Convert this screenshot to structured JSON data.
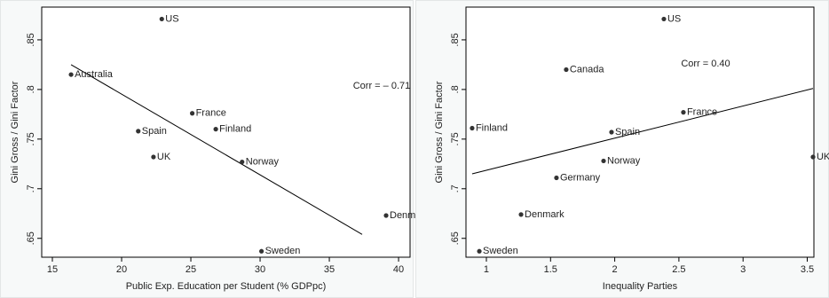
{
  "chart_data": [
    {
      "type": "scatter",
      "x_label": "Public Exp. Education per Student (% GDPpc)",
      "y_label": "Gini Gross / Gini Factor",
      "annotation": "Corr = – 0.71",
      "labels": [
        "Australia",
        "US",
        "France",
        "Finland",
        "Spain",
        "UK",
        "Norway",
        "Denmark",
        "Sweden"
      ],
      "x": [
        16.35,
        22.9,
        25.1,
        26.8,
        21.2,
        22.3,
        28.7,
        39.1,
        30.1
      ],
      "values": [
        0.815,
        0.871,
        0.776,
        0.76,
        0.758,
        0.732,
        0.727,
        0.673,
        0.637
      ],
      "fit": {
        "x": [
          16.35,
          37.37
        ],
        "values": [
          0.825,
          0.654
        ]
      },
      "color": "#333333",
      "xlim": [
        14.23,
        40.83
      ],
      "ylim": [
        0.631,
        0.883
      ],
      "xticks": [
        15,
        20,
        25,
        30,
        35,
        40
      ],
      "yticks": [
        {
          "value": 0.65,
          "label": ".65"
        },
        {
          "value": 0.7,
          "label": ".7"
        },
        {
          "value": 0.75,
          "label": ".75"
        },
        {
          "value": 0.8,
          "label": ".8"
        },
        {
          "value": 0.85,
          "label": ".85"
        }
      ]
    },
    {
      "type": "scatter",
      "x_label": "Inequality Parties",
      "y_label": "Gini Gross / Gini Factor",
      "annotation": "Corr = 0.40",
      "labels": [
        "US",
        "Canada",
        "France",
        "Finland",
        "Spain",
        "UK",
        "Norway",
        "Germany",
        "Denmark",
        "Sweden"
      ],
      "x": [
        2.383,
        1.622,
        2.535,
        0.889,
        1.975,
        3.545,
        1.913,
        1.546,
        1.27,
        0.945
      ],
      "values": [
        0.871,
        0.82,
        0.777,
        0.761,
        0.757,
        0.732,
        0.728,
        0.711,
        0.674,
        0.637
      ],
      "fit": {
        "x": [
          0.889,
          3.545
        ],
        "values": [
          0.715,
          0.801
        ]
      },
      "color": "#333333",
      "xlim": [
        0.841,
        3.552
      ],
      "ylim": [
        0.631,
        0.883
      ],
      "xticks": [
        1,
        1.5,
        2,
        2.5,
        3,
        3.5
      ],
      "yticks": [
        {
          "value": 0.65,
          "label": ".65"
        },
        {
          "value": 0.7,
          "label": ".7"
        },
        {
          "value": 0.75,
          "label": ".75"
        },
        {
          "value": 0.8,
          "label": ".8"
        },
        {
          "value": 0.85,
          "label": ".85"
        }
      ]
    }
  ]
}
